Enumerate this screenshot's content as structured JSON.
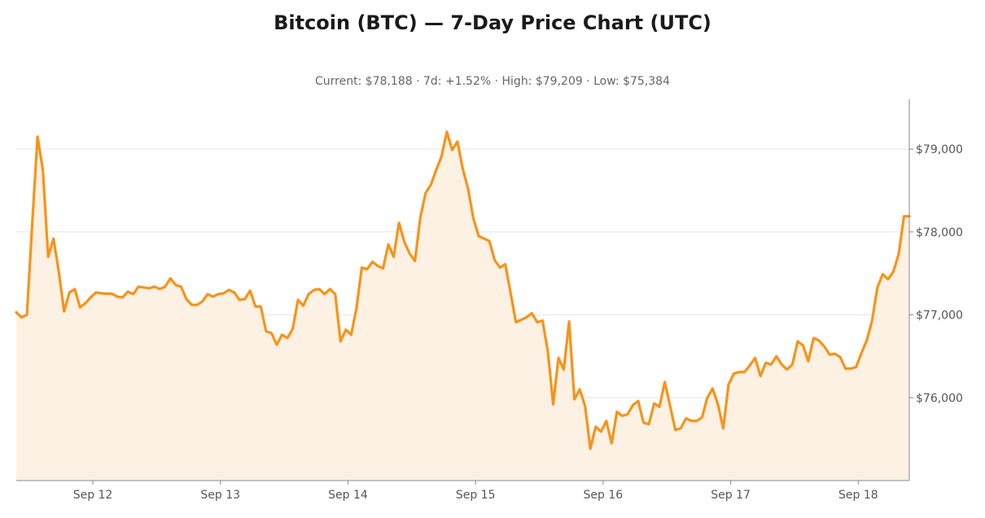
{
  "header": {
    "title": "Bitcoin (BTC) — 7-Day Price Chart (UTC)",
    "subtitle": "Current: $78,188  ·  7d: +1.52%  ·  High: $79,209  ·  Low: $75,384"
  },
  "chart_data": {
    "type": "area",
    "title": "Bitcoin (BTC) — 7-Day Price Chart (UTC)",
    "subtitle": "Current: $78,188  ·  7d: +1.52%  ·  High: $79,209  ·  Low: $75,384",
    "xlabel": "",
    "ylabel": "",
    "x_start": "2024-09-11T09:00Z",
    "x_end": "2024-09-18T10:00Z",
    "x_step_hours": 1,
    "xlim_days": [
      11.4,
      18.4
    ],
    "ylim": [
      75000,
      79600
    ],
    "y_axis_position": "right",
    "grid": "horizontal",
    "colors": {
      "line": "#f7931a",
      "fill": "#fdf1e4",
      "grid": "#e6e6e6",
      "axis": "#888888"
    },
    "x_ticks": [
      {
        "day": 12,
        "label": "Sep 12"
      },
      {
        "day": 13,
        "label": "Sep 13"
      },
      {
        "day": 14,
        "label": "Sep 14"
      },
      {
        "day": 15,
        "label": "Sep 15"
      },
      {
        "day": 16,
        "label": "Sep 16"
      },
      {
        "day": 17,
        "label": "Sep 17"
      },
      {
        "day": 18,
        "label": "Sep 18"
      }
    ],
    "y_ticks": [
      {
        "value": 76000,
        "label": "$76,000"
      },
      {
        "value": 77000,
        "label": "$77,000"
      },
      {
        "value": 78000,
        "label": "$78,000"
      },
      {
        "value": 79000,
        "label": "$79,000"
      }
    ],
    "series": [
      {
        "values": [
          77030,
          76970,
          77000,
          78100,
          79150,
          78750,
          77700,
          77920,
          77520,
          77040,
          77270,
          77310,
          77090,
          77140,
          77210,
          77270,
          77260,
          77255,
          77255,
          77220,
          77210,
          77280,
          77250,
          77340,
          77330,
          77320,
          77340,
          77310,
          77340,
          77440,
          77360,
          77340,
          77190,
          77120,
          77120,
          77160,
          77250,
          77220,
          77250,
          77260,
          77300,
          77270,
          77180,
          77190,
          77290,
          77100,
          77100,
          76800,
          76780,
          76640,
          76760,
          76720,
          76830,
          77180,
          77110,
          77250,
          77300,
          77310,
          77250,
          77310,
          77250,
          76680,
          76820,
          76760,
          77080,
          77570,
          77550,
          77640,
          77590,
          77560,
          77850,
          77700,
          78110,
          77880,
          77740,
          77650,
          78170,
          78470,
          78570,
          78750,
          78910,
          79209,
          78990,
          79090,
          78760,
          78520,
          78160,
          77950,
          77920,
          77890,
          77660,
          77570,
          77610,
          77260,
          76910,
          76940,
          76970,
          77020,
          76910,
          76930,
          76560,
          75920,
          76480,
          76340,
          76920,
          75980,
          76100,
          75900,
          75384,
          75650,
          75590,
          75720,
          75450,
          75830,
          75780,
          75800,
          75910,
          75960,
          75700,
          75680,
          75930,
          75890,
          76190,
          75900,
          75610,
          75630,
          75750,
          75720,
          75720,
          75760,
          76000,
          76110,
          75920,
          75630,
          76160,
          76290,
          76310,
          76310,
          76390,
          76480,
          76260,
          76420,
          76400,
          76500,
          76400,
          76340,
          76400,
          76680,
          76630,
          76440,
          76720,
          76690,
          76620,
          76520,
          76530,
          76490,
          76350,
          76350,
          76370,
          76540,
          76690,
          76930,
          77330,
          77490,
          77430,
          77520,
          77730,
          78188,
          78190
        ]
      }
    ]
  }
}
